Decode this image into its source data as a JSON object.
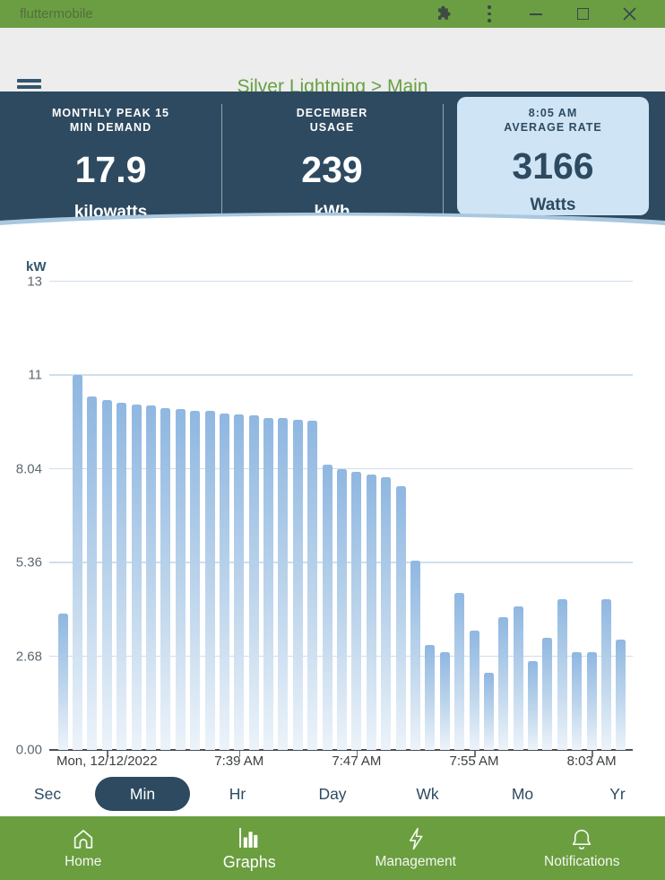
{
  "window": {
    "title": "fluttermobile",
    "controls": {
      "minimize": "minimize",
      "maximize": "maximize",
      "close": "close"
    }
  },
  "appbar": {
    "title": "Silver Lightning > Main"
  },
  "stats": [
    {
      "label_line1": "MONTHLY PEAK 15",
      "label_line2": "MIN DEMAND",
      "value": "17.9",
      "unit": "kilowatts",
      "highlighted": false
    },
    {
      "label_line1": "DECEMBER",
      "label_line2": "USAGE",
      "value": "239",
      "unit": "kWh",
      "highlighted": false
    },
    {
      "label_line1": "8:05 AM",
      "label_line2": "AVERAGE RATE",
      "value": "3166",
      "unit": "Watts",
      "highlighted": true
    }
  ],
  "chart_data": {
    "type": "bar",
    "ylabel": "kW",
    "ylim": [
      0,
      13.4
    ],
    "grid": true,
    "y_ticks": [
      {
        "label": "0.00",
        "value": 0
      },
      {
        "label": "2.68",
        "value": 2.68
      },
      {
        "label": "5.36",
        "value": 5.36
      },
      {
        "label": "8.04",
        "value": 8.04
      },
      {
        "label": "11",
        "value": 10.72
      },
      {
        "label": "13",
        "value": 13.4
      }
    ],
    "values": [
      3.9,
      10.72,
      10.1,
      10.0,
      9.92,
      9.87,
      9.85,
      9.78,
      9.75,
      9.7,
      9.7,
      9.63,
      9.6,
      9.57,
      9.5,
      9.5,
      9.45,
      9.4,
      8.15,
      8.02,
      7.95,
      7.87,
      7.8,
      7.55,
      5.4,
      3.0,
      2.8,
      4.5,
      3.4,
      2.2,
      3.8,
      4.1,
      2.55,
      3.2,
      4.3,
      2.8,
      2.8,
      4.3,
      3.15
    ],
    "x_ticks": [
      {
        "label": "Mon, 12/12/2022",
        "bar_index": 3
      },
      {
        "label": "7:39 AM",
        "bar_index": 12
      },
      {
        "label": "7:47 AM",
        "bar_index": 20
      },
      {
        "label": "7:55 AM",
        "bar_index": 28
      },
      {
        "label": "8:03 AM",
        "bar_index": 36
      }
    ]
  },
  "range_tabs": {
    "options": [
      "Sec",
      "Min",
      "Hr",
      "Day",
      "Wk",
      "Mo",
      "Yr"
    ],
    "selected": "Min"
  },
  "bottom_nav": {
    "items": [
      {
        "label": "Home"
      },
      {
        "label": "Graphs"
      },
      {
        "label": "Management"
      },
      {
        "label": "Notifications"
      }
    ],
    "selected": "Graphs"
  },
  "colors": {
    "titlebar_green": "#6B9E42",
    "nav_green": "#6A9E3F",
    "slate": "#2D4A60",
    "title_green": "#68A041",
    "card_bg": "#CFE4F5",
    "bar_top": "#8FB7E1",
    "bar_bottom": "#ECF3FA",
    "grid": "#CFDEEB"
  }
}
